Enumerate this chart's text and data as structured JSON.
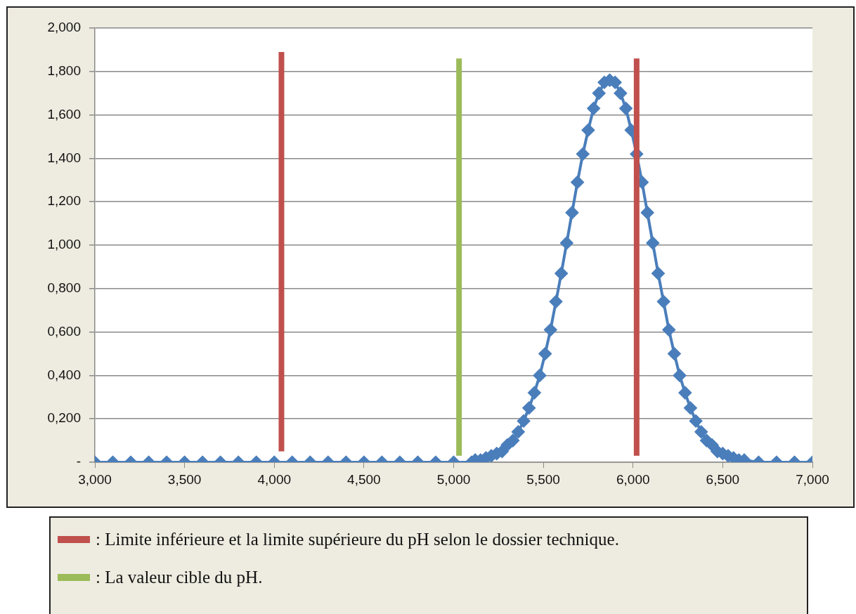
{
  "chart_data": {
    "type": "line",
    "xlim": [
      3,
      7
    ],
    "ylim": [
      0,
      2
    ],
    "xticks": [
      {
        "value": 3,
        "label": "3,000"
      },
      {
        "value": 3.5,
        "label": "3,500"
      },
      {
        "value": 4,
        "label": "4,000"
      },
      {
        "value": 4.5,
        "label": "4,500"
      },
      {
        "value": 5,
        "label": "5,000"
      },
      {
        "value": 5.5,
        "label": "5,500"
      },
      {
        "value": 6,
        "label": "6,000"
      },
      {
        "value": 6.5,
        "label": "6,500"
      },
      {
        "value": 7,
        "label": "7,000"
      }
    ],
    "yticks": [
      {
        "value": 0,
        "label": "-"
      },
      {
        "value": 0.2,
        "label": "0,200"
      },
      {
        "value": 0.4,
        "label": "0,400"
      },
      {
        "value": 0.6,
        "label": "0,600"
      },
      {
        "value": 0.8,
        "label": "0,800"
      },
      {
        "value": 1,
        "label": "1,000"
      },
      {
        "value": 1.2,
        "label": "1,200"
      },
      {
        "value": 1.4,
        "label": "1,400"
      },
      {
        "value": 1.6,
        "label": "1,600"
      },
      {
        "value": 1.8,
        "label": "1,800"
      },
      {
        "value": 2,
        "label": "2,000"
      }
    ],
    "grid": "y",
    "legend": "bottom",
    "marker": "diamond",
    "series": [
      {
        "color": "#4a7ebb",
        "x": [
          3,
          3.1,
          3.2,
          3.3,
          3.4,
          3.5,
          3.6,
          3.7,
          3.8,
          3.9,
          4,
          4.1,
          4.2,
          4.3,
          4.4,
          4.5,
          4.6,
          4.7,
          4.8,
          4.9,
          5,
          5.1,
          5.12,
          5.15,
          5.18,
          5.21,
          5.24,
          5.27,
          5.3,
          5.33,
          5.36,
          5.39,
          5.42,
          5.45,
          5.48,
          5.51,
          5.54,
          5.57,
          5.6,
          5.63,
          5.66,
          5.69,
          5.72,
          5.75,
          5.78,
          5.81,
          5.84,
          5.87,
          5.9,
          5.93,
          5.96,
          5.99,
          6.02,
          6.05,
          6.08,
          6.11,
          6.14,
          6.17,
          6.2,
          6.23,
          6.26,
          6.29,
          6.32,
          6.35,
          6.38,
          6.41,
          6.44,
          6.47,
          6.5,
          6.53,
          6.56,
          6.59,
          6.62,
          6.7,
          6.8,
          6.9,
          7
        ],
        "values": [
          0,
          0,
          0,
          0,
          0,
          0,
          0,
          0,
          0,
          0,
          0,
          0,
          0,
          0,
          0,
          0,
          0,
          0,
          0,
          0,
          0,
          0,
          0.01,
          0.01,
          0.02,
          0.03,
          0.04,
          0.05,
          0.08,
          0.1,
          0.14,
          0.19,
          0.25,
          0.32,
          0.4,
          0.5,
          0.61,
          0.74,
          0.87,
          1.01,
          1.15,
          1.29,
          1.42,
          1.53,
          1.63,
          1.7,
          1.75,
          1.76,
          1.75,
          1.7,
          1.63,
          1.53,
          1.42,
          1.29,
          1.15,
          1.01,
          0.87,
          0.74,
          0.61,
          0.5,
          0.4,
          0.32,
          0.25,
          0.19,
          0.14,
          0.1,
          0.08,
          0.05,
          0.04,
          0.03,
          0.02,
          0.01,
          0.01,
          0,
          0,
          0,
          0
        ]
      },
      {
        "name": ": Limite inférieure et la limite supérieure du pH selon le dossier technique.",
        "color": "#c0504d",
        "marker": "none",
        "x": [
          4.04,
          4.04
        ],
        "values": [
          0.05,
          1.89
        ]
      },
      {
        "color": "#c0504d",
        "marker": "none",
        "x": [
          6.02,
          6.02
        ],
        "values": [
          0.03,
          1.86
        ]
      },
      {
        "name": ": La valeur cible du pH.",
        "color": "#9bbb59",
        "marker": "none",
        "x": [
          5.03,
          5.03
        ],
        "values": [
          0.03,
          1.86
        ]
      }
    ]
  }
}
